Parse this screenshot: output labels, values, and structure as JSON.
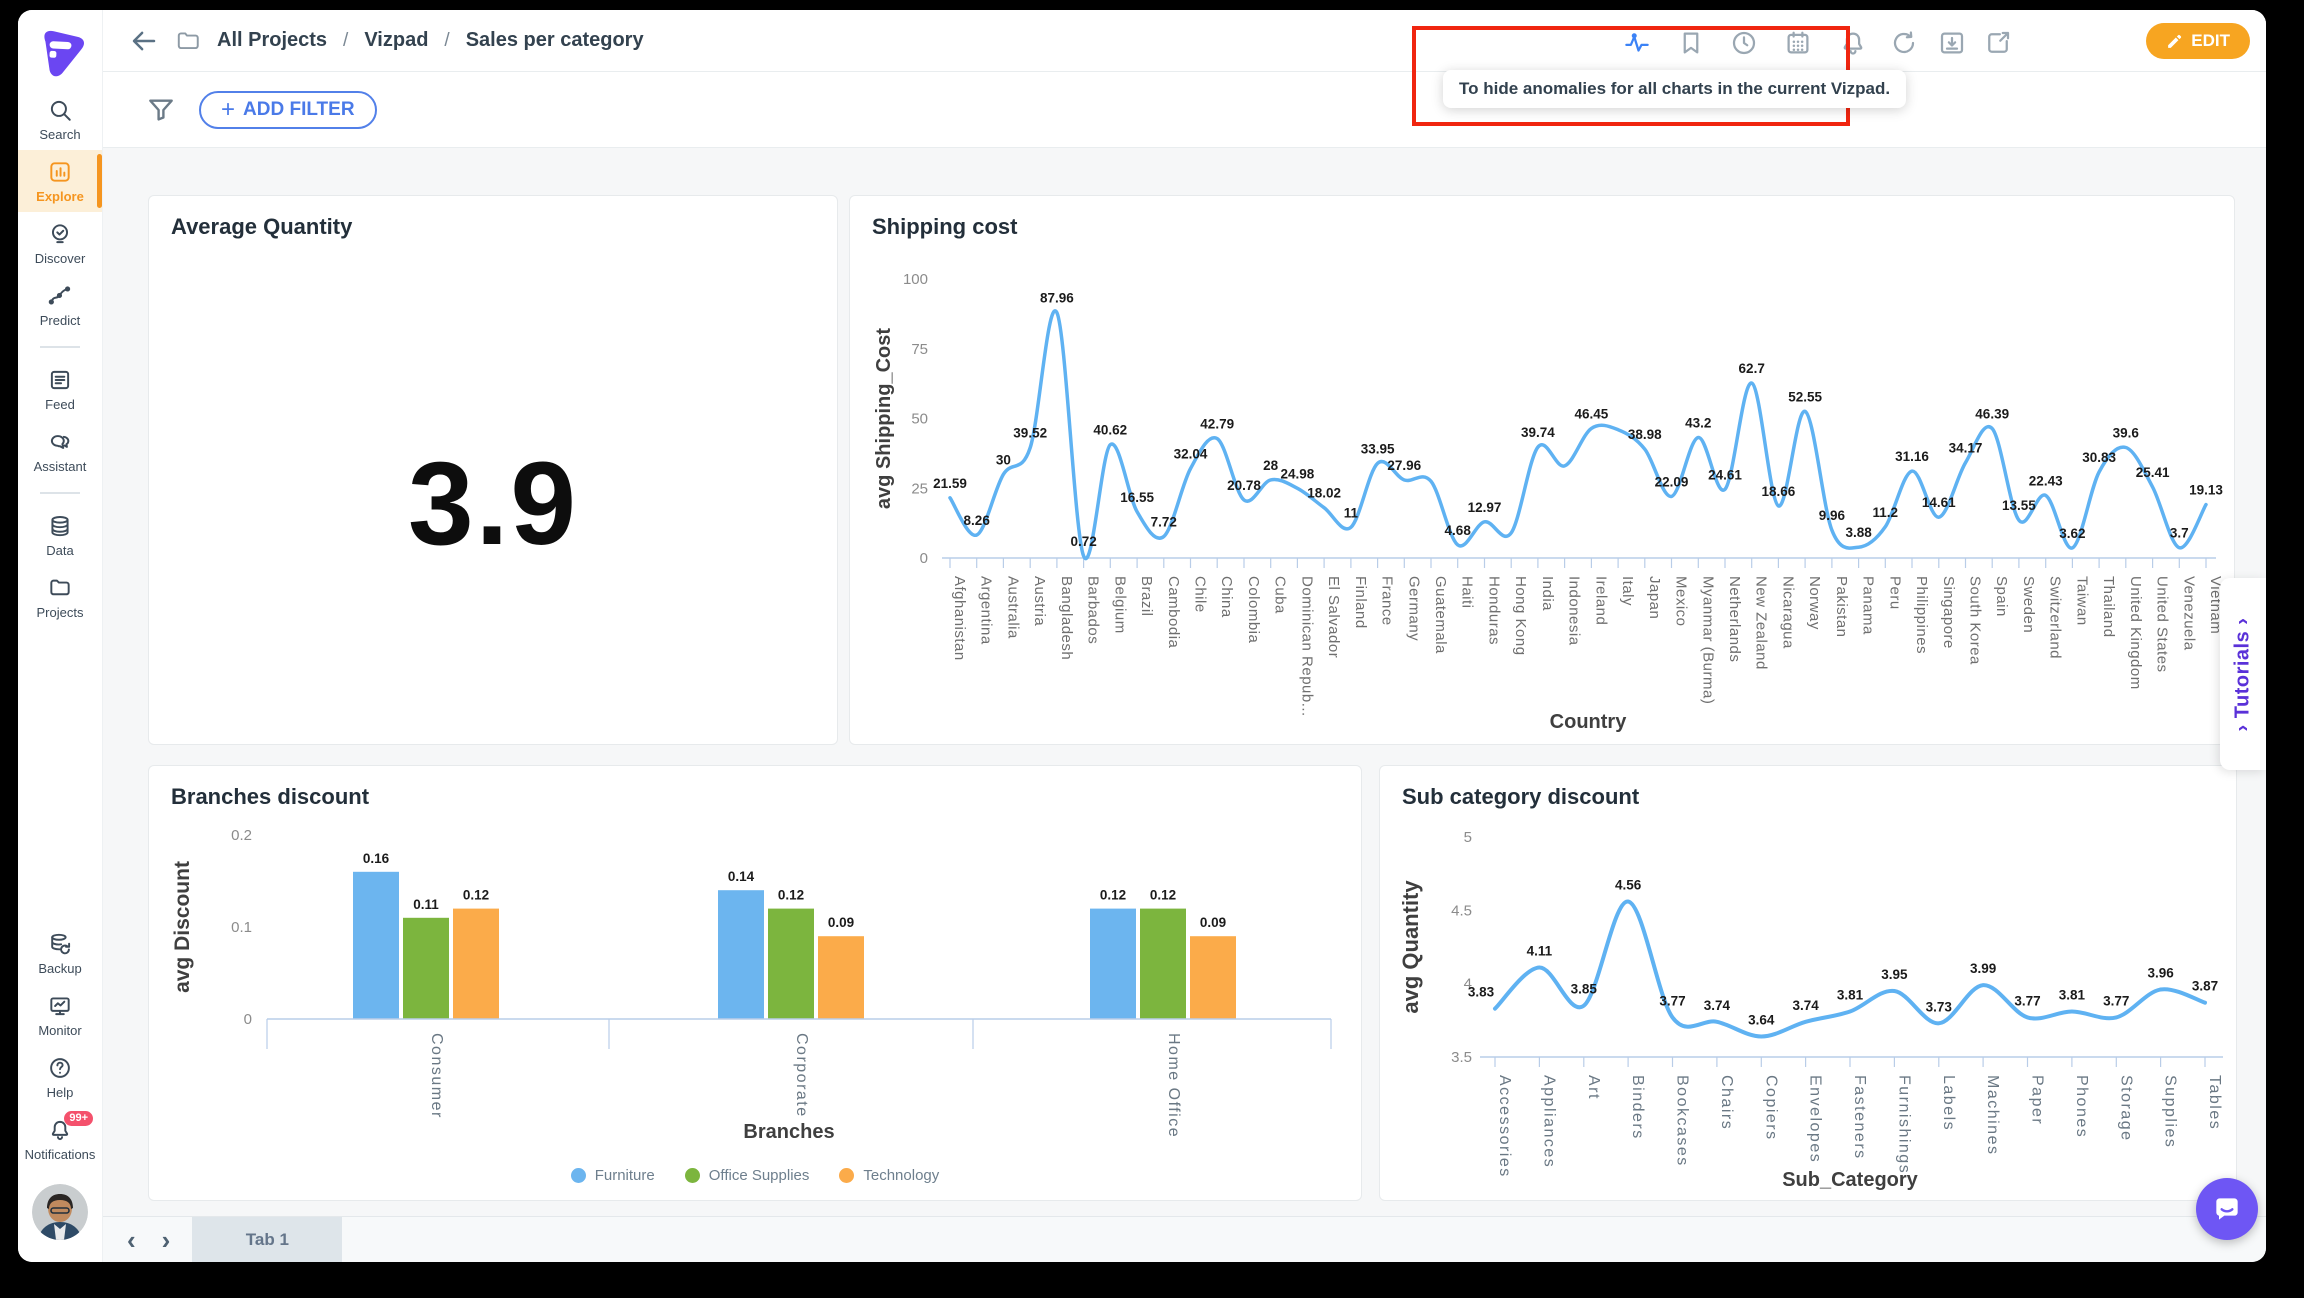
{
  "breadcrumb": {
    "items": [
      "All Projects",
      "Vizpad",
      "Sales per category"
    ],
    "separator": "/"
  },
  "toolbar": {
    "icons": [
      {
        "name": "anomaly-pulse-icon",
        "active": true
      },
      {
        "name": "bookmark-icon"
      },
      {
        "name": "history-clock-icon"
      },
      {
        "name": "calendar-icon"
      },
      {
        "name": "bell-icon"
      },
      {
        "name": "refresh-icon"
      },
      {
        "name": "download-icon"
      },
      {
        "name": "share-icon"
      }
    ],
    "edit_label": "EDIT"
  },
  "annotation": {
    "tooltip_text": "To hide anomalies for all charts in the current Vizpad.",
    "box_color": "#f0250f"
  },
  "filter_bar": {
    "add_filter_label": "ADD FILTER",
    "plus": "+"
  },
  "sidebar": {
    "items": [
      {
        "id": "search",
        "label": "Search",
        "icon": "search-icon",
        "active": false
      },
      {
        "id": "explore",
        "label": "Explore",
        "icon": "explore-icon",
        "active": true
      },
      {
        "id": "discover",
        "label": "Discover",
        "icon": "discover-icon",
        "active": false
      },
      {
        "id": "predict",
        "label": "Predict",
        "icon": "predict-icon",
        "active": false
      },
      {
        "divider": true
      },
      {
        "id": "feed",
        "label": "Feed",
        "icon": "feed-icon",
        "active": false
      },
      {
        "id": "assistant",
        "label": "Assistant",
        "icon": "assistant-icon",
        "active": false
      },
      {
        "divider": true
      },
      {
        "id": "data",
        "label": "Data",
        "icon": "data-icon",
        "active": false
      },
      {
        "id": "projects",
        "label": "Projects",
        "icon": "projects-icon",
        "active": false
      }
    ],
    "bottom_items": [
      {
        "id": "backup",
        "label": "Backup",
        "icon": "backup-icon"
      },
      {
        "id": "monitor",
        "label": "Monitor",
        "icon": "monitor-icon"
      },
      {
        "id": "help",
        "label": "Help",
        "icon": "help-icon"
      },
      {
        "id": "notifications",
        "label": "Notifications",
        "icon": "notification-bell-icon",
        "badge": "99+"
      }
    ]
  },
  "tabs": {
    "active_tab": "Tab 1"
  },
  "tutorials_label": "Tutorials",
  "theme": {
    "accent_orange": "#f5951f",
    "edit_orange": "#f7a521",
    "filter_blue": "#5280e9",
    "line_blue": "#5fb2f2",
    "bar_blue": "#6cb5ef",
    "bar_green": "#7cb53e",
    "bar_orange": "#fbab4a",
    "annotation_red": "#f0250f",
    "badge_red": "#f4516c",
    "tutorials_purple": "#5a31d8",
    "chat_purple": "#6e56f4"
  },
  "chart_data": [
    {
      "type": "kpi",
      "title": "Average Quantity",
      "value": "3.9"
    },
    {
      "type": "line",
      "title": "Shipping cost",
      "xlabel": "Country",
      "ylabel": "avg Shipping_Cost",
      "ylim": [
        0,
        100
      ],
      "yticks": [
        0,
        25,
        50,
        75,
        100
      ],
      "grid": false,
      "categories": [
        "Afghanistan",
        "Argentina",
        "Australia",
        "Austria",
        "Bangladesh",
        "Barbados",
        "Belgium",
        "Brazil",
        "Cambodia",
        "Chile",
        "China",
        "Colombia",
        "Cuba",
        "Dominican Repub...",
        "El Salvador",
        "Finland",
        "France",
        "Germany",
        "Guatemala",
        "Haiti",
        "Honduras",
        "Hong Kong",
        "India",
        "Indonesia",
        "Ireland",
        "Italy",
        "Japan",
        "Mexico",
        "Myanmar (Burma)",
        "Netherlands",
        "New Zealand",
        "Nicaragua",
        "Norway",
        "Pakistan",
        "Panama",
        "Peru",
        "Philippines",
        "Singapore",
        "South Korea",
        "Spain",
        "Sweden",
        "Switzerland",
        "Taiwan",
        "Thailand",
        "United Kingdom",
        "United States",
        "Venezuela",
        "Vietnam"
      ],
      "values": [
        21.59,
        8.26,
        30,
        39.52,
        87.96,
        0.72,
        40.62,
        16.55,
        7.72,
        32.04,
        42.79,
        20.78,
        28,
        24.98,
        18.02,
        11,
        33.95,
        27.96,
        27.5,
        4.68,
        12.97,
        9,
        39.74,
        33,
        46.45,
        46,
        38.98,
        22.09,
        43.2,
        24.61,
        62.7,
        18.66,
        52.55,
        9.96,
        3.88,
        11.2,
        31.16,
        14.61,
        34.17,
        46.39,
        13.55,
        22.43,
        3.62,
        30.83,
        39.6,
        25.41,
        3.7,
        19.13
      ],
      "unlabeled_point_indices": [
        18,
        21,
        23,
        25
      ]
    },
    {
      "type": "bar",
      "title": "Branches discount",
      "xlabel": "Branches",
      "ylabel": "avg Discount",
      "ylim": [
        0,
        0.2
      ],
      "yticks": [
        0,
        0.1,
        0.2
      ],
      "grid": false,
      "legend_position": "bottom",
      "categories": [
        "Consumer",
        "Corporate",
        "Home Office"
      ],
      "series": [
        {
          "name": "Furniture",
          "color": "#6cb5ef",
          "values": [
            0.16,
            0.14,
            0.12
          ]
        },
        {
          "name": "Office Supplies",
          "color": "#7cb53e",
          "values": [
            0.11,
            0.12,
            0.12
          ]
        },
        {
          "name": "Technology",
          "color": "#fbab4a",
          "values": [
            0.12,
            0.09,
            0.09
          ]
        }
      ]
    },
    {
      "type": "line",
      "title": "Sub category discount",
      "xlabel": "Sub_Category",
      "ylabel": "avg Quantity",
      "ylim": [
        3.5,
        5
      ],
      "yticks": [
        3.5,
        4,
        4.5,
        5
      ],
      "grid": false,
      "categories": [
        "Accessories",
        "Appliances",
        "Art",
        "Binders",
        "Bookcases",
        "Chairs",
        "Copiers",
        "Envelopes",
        "Fasteners",
        "Furnishings",
        "Labels",
        "Machines",
        "Paper",
        "Phones",
        "Storage",
        "Supplies",
        "Tables"
      ],
      "values": [
        3.83,
        4.11,
        3.85,
        4.56,
        3.77,
        3.74,
        3.64,
        3.74,
        3.81,
        3.95,
        3.73,
        3.99,
        3.77,
        3.81,
        3.77,
        3.96,
        3.87
      ]
    }
  ]
}
